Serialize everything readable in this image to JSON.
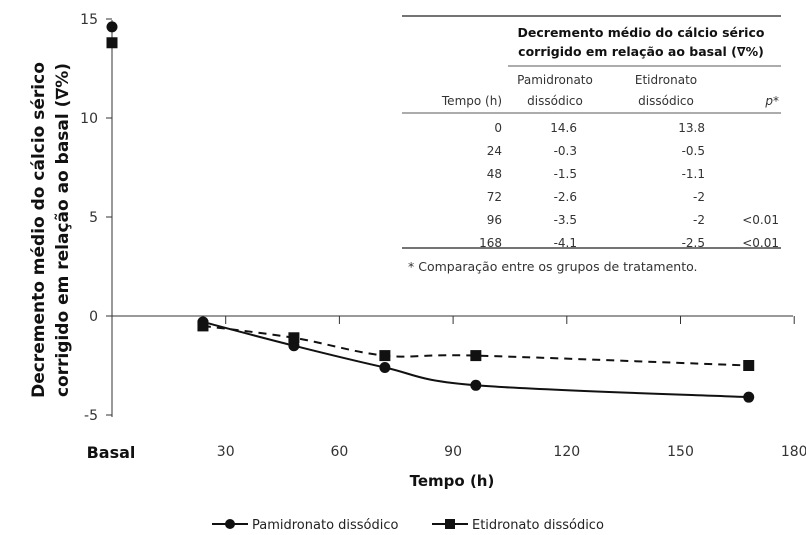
{
  "chart_data": {
    "type": "line",
    "ylabel_line1": "Decremento médio do cálcio sérico",
    "ylabel_line2": "corrigido em relação ao basal (∇%)",
    "xlabel": "Tempo (h)",
    "x_basal_label": "Basal",
    "xlim": [
      0,
      180
    ],
    "ylim": [
      -5,
      15
    ],
    "x_ticks": [
      "30",
      "60",
      "90",
      "120",
      "150",
      "180"
    ],
    "y_ticks": [
      "15",
      "10",
      "5",
      "0",
      "-5"
    ],
    "legend_position": "bottom",
    "series": [
      {
        "name": "Pamidronato dissódico",
        "marker": "circle",
        "line": "solid",
        "basal": 14.6,
        "x": [
          24,
          48,
          72,
          96,
          168
        ],
        "values": [
          -0.3,
          -1.5,
          -2.6,
          -3.5,
          -4.1
        ]
      },
      {
        "name": "Etidronato dissódico",
        "marker": "square",
        "line": "dashed",
        "basal": 13.8,
        "x": [
          24,
          48,
          72,
          96,
          168
        ],
        "values": [
          -0.5,
          -1.1,
          -2,
          -2,
          -2.5
        ]
      }
    ],
    "table": {
      "title_line1": "Decremento médio do cálcio sérico",
      "title_line2": "corrigido em relação ao basal (∇%)",
      "col_time": "Tempo (h)",
      "col_pam_1": "Pamidronato",
      "col_pam_2": "dissódico",
      "col_eti_1": "Etidronato",
      "col_eti_2": "dissódico",
      "col_p": "p*",
      "rows": [
        {
          "t": "0",
          "pam": "14.6",
          "eti": "13.8",
          "p": ""
        },
        {
          "t": "24",
          "pam": "-0.3",
          "eti": "-0.5",
          "p": ""
        },
        {
          "t": "48",
          "pam": "-1.5",
          "eti": "-1.1",
          "p": ""
        },
        {
          "t": "72",
          "pam": "-2.6",
          "eti": "-2",
          "p": ""
        },
        {
          "t": "96",
          "pam": "-3.5",
          "eti": "-2",
          "p": "<0.01"
        },
        {
          "t": "168",
          "pam": "-4.1",
          "eti": "-2.5",
          "p": "<0.01"
        }
      ],
      "footnote": "* Comparação entre os grupos de tratamento."
    }
  }
}
